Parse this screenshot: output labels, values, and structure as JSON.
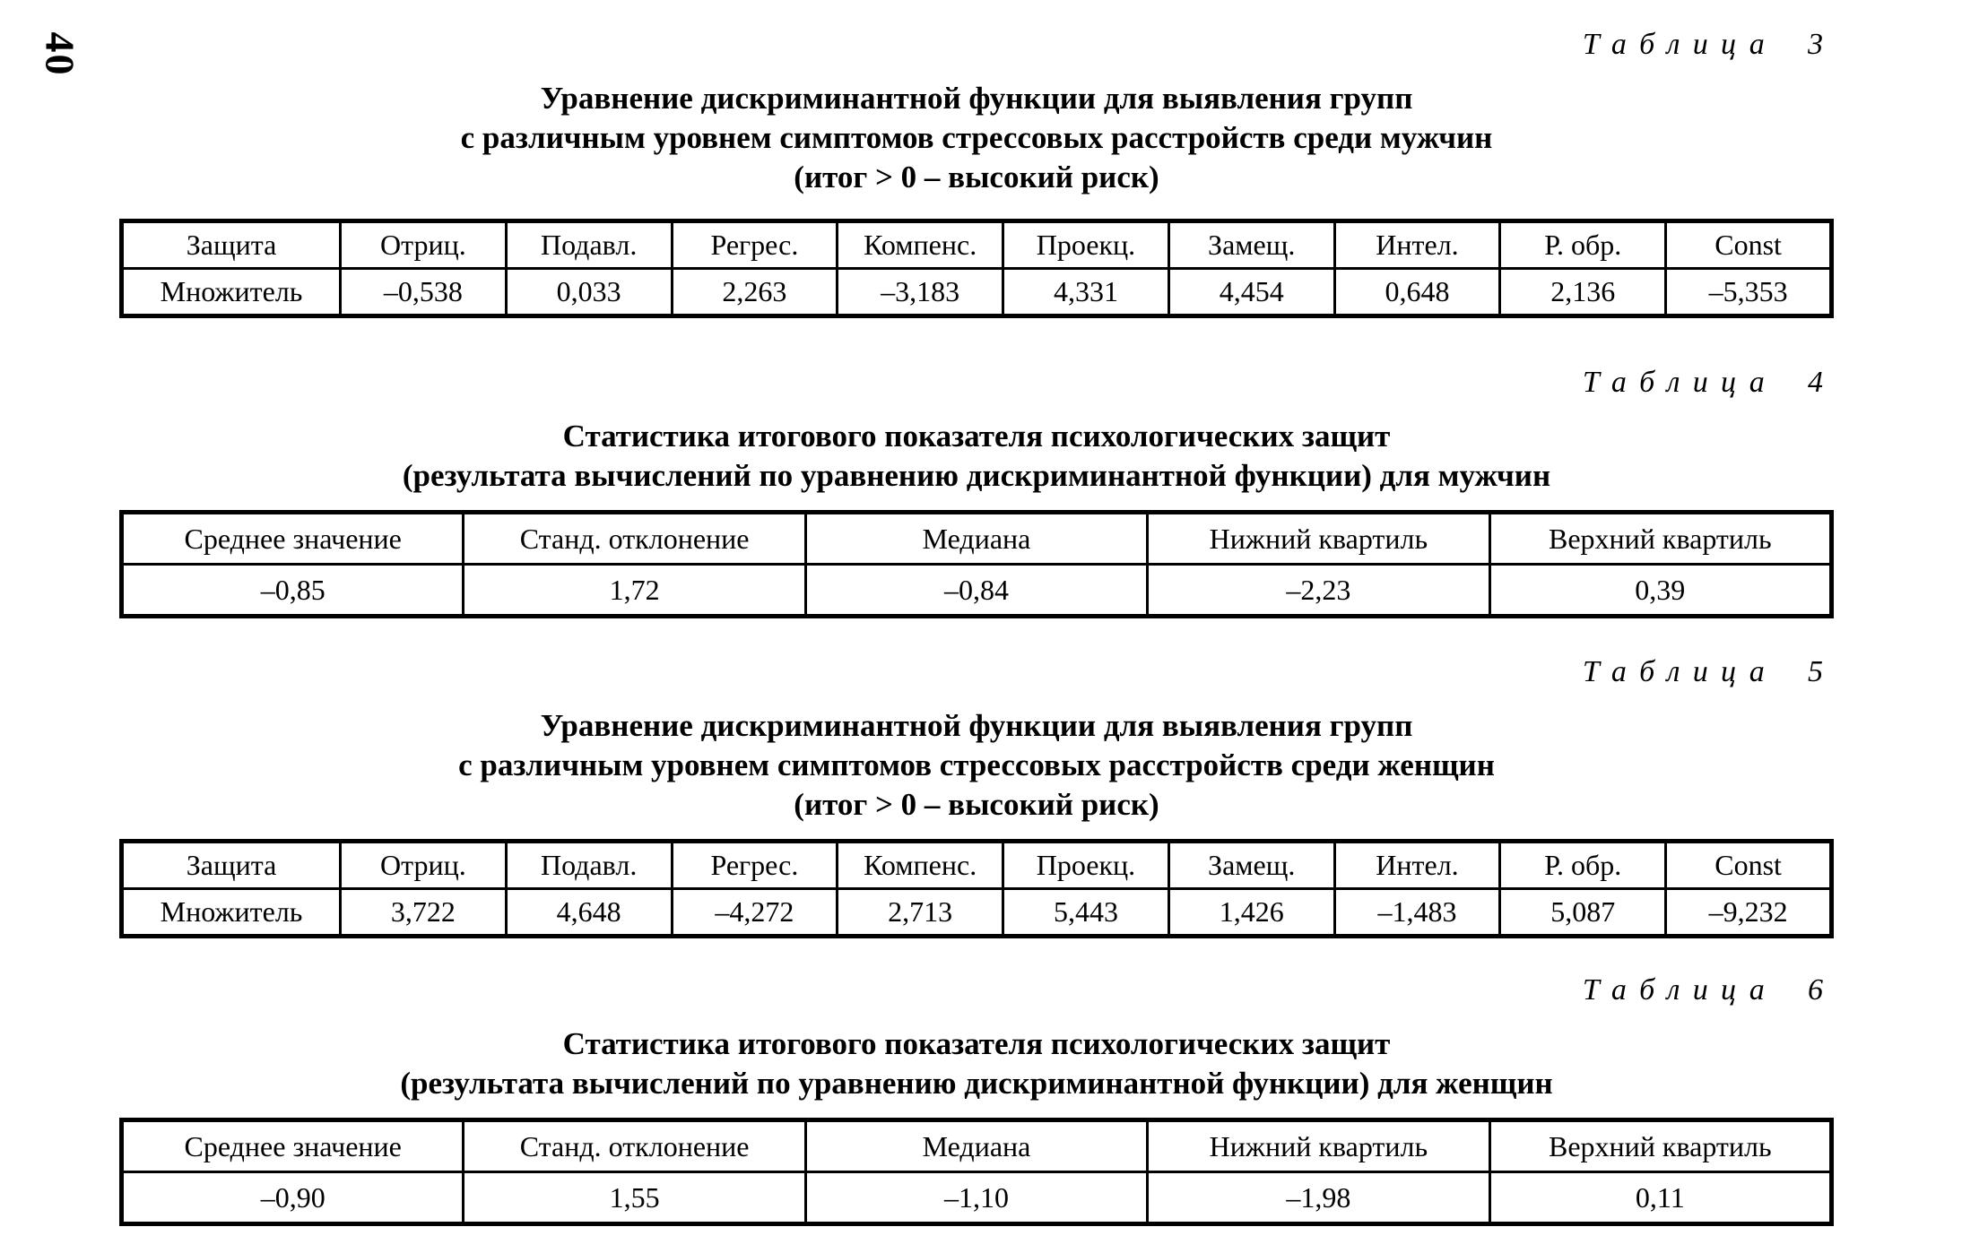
{
  "page_number": "40",
  "sections": [
    {
      "label": "Таблица",
      "number": "3",
      "title_lines": [
        "Уравнение дискриминантной функции для выявления групп",
        "с различным уровнем симптомов стрессовых расстройств среди мужчин",
        "(итог > 0 – высокий риск)"
      ],
      "table": {
        "headers": [
          "Защита",
          "Отриц.",
          "Подавл.",
          "Регрес.",
          "Компенс.",
          "Проекц.",
          "Замещ.",
          "Интел.",
          "Р. обр.",
          "Const"
        ],
        "row": [
          "Множитель",
          "–0,538",
          "0,033",
          "2,263",
          "–3,183",
          "4,331",
          "4,454",
          "0,648",
          "2,136",
          "–5,353"
        ]
      }
    },
    {
      "label": "Таблица",
      "number": "4",
      "title_lines": [
        "Статистика итогового показателя психологических защит",
        "(результата вычислений по уравнению дискриминантной функции) для мужчин"
      ],
      "table": {
        "headers": [
          "Среднее значение",
          "Станд. отклонение",
          "Медиана",
          "Нижний квартиль",
          "Верхний квартиль"
        ],
        "row": [
          "–0,85",
          "1,72",
          "–0,84",
          "–2,23",
          "0,39"
        ]
      }
    },
    {
      "label": "Таблица",
      "number": "5",
      "title_lines": [
        "Уравнение дискриминантной функции для выявления групп",
        "с различным уровнем симптомов стрессовых расстройств среди женщин",
        "(итог > 0 – высокий риск)"
      ],
      "table": {
        "headers": [
          "Защита",
          "Отриц.",
          "Подавл.",
          "Регрес.",
          "Компенс.",
          "Проекц.",
          "Замещ.",
          "Интел.",
          "Р. обр.",
          "Const"
        ],
        "row": [
          "Множитель",
          "3,722",
          "4,648",
          "–4,272",
          "2,713",
          "5,443",
          "1,426",
          "–1,483",
          "5,087",
          "–9,232"
        ]
      }
    },
    {
      "label": "Таблица",
      "number": "6",
      "title_lines": [
        "Статистика итогового показателя психологических защит",
        "(результата вычислений по уравнению дискриминантной функции) для женщин"
      ],
      "table": {
        "headers": [
          "Среднее значение",
          "Станд. отклонение",
          "Медиана",
          "Нижний квартиль",
          "Верхний квартиль"
        ],
        "row": [
          "–0,90",
          "1,55",
          "–1,10",
          "–1,98",
          "0,11"
        ]
      }
    }
  ]
}
